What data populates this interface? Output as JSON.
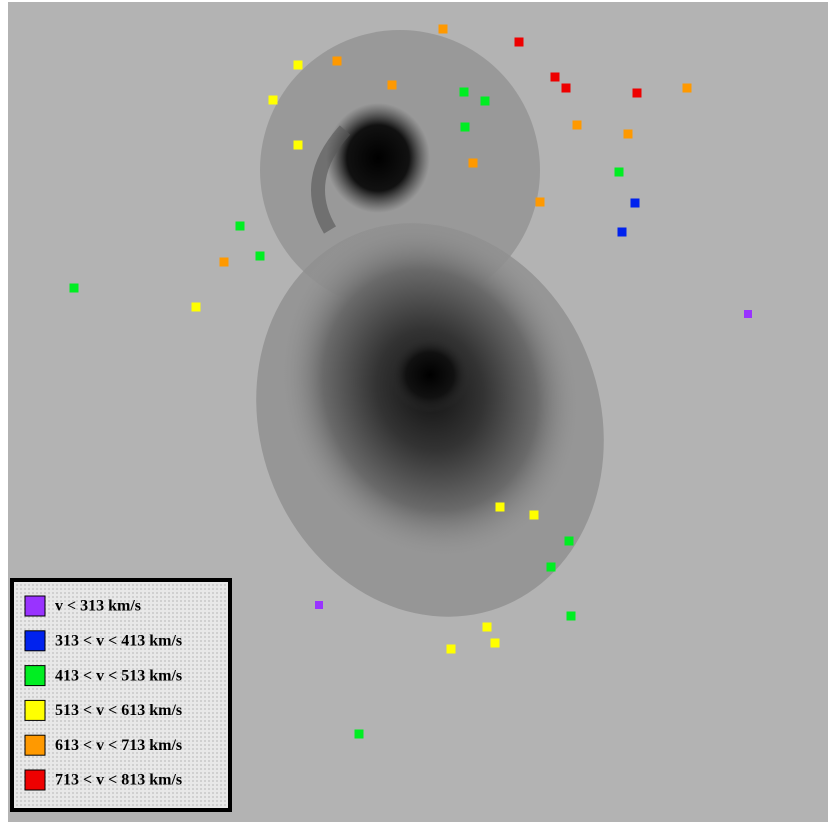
{
  "legend": {
    "items": [
      {
        "label": "v < 313 km/s",
        "color": "#9933ff"
      },
      {
        "label": "313 < v < 413 km/s",
        "color": "#0022ee"
      },
      {
        "label": "413 < v < 513 km/s",
        "color": "#00ee22"
      },
      {
        "label": "513 < v < 613 km/s",
        "color": "#ffff00"
      },
      {
        "label": "613 < v < 713 km/s",
        "color": "#ff9900"
      },
      {
        "label": "713 < v < 813 km/s",
        "color": "#ee0000"
      }
    ]
  }
}
